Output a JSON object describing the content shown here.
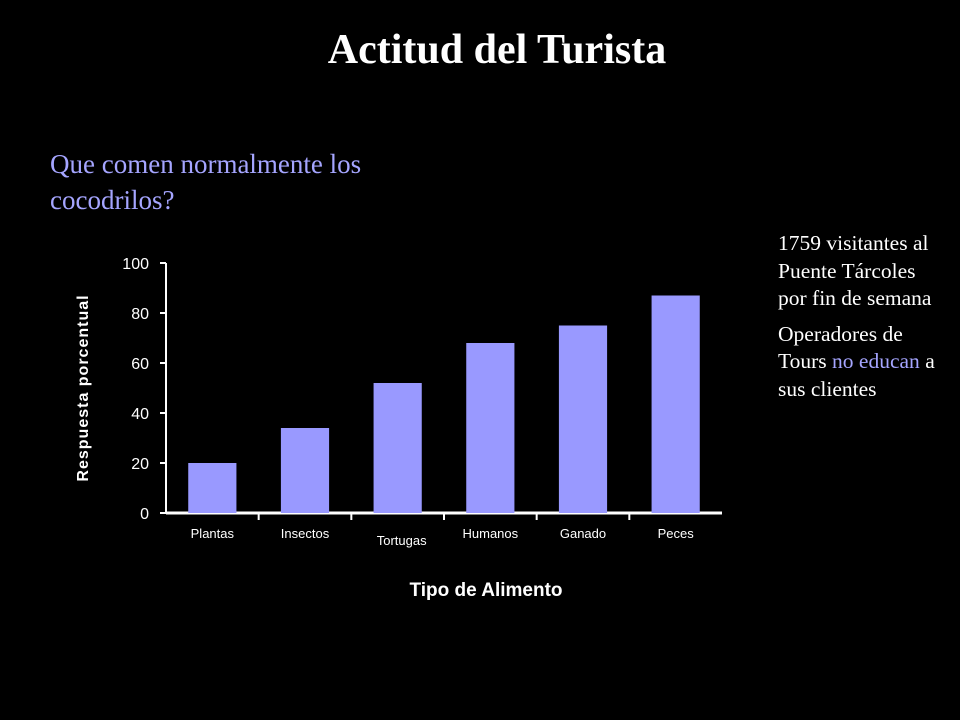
{
  "slide": {
    "title": "Actitud del Turista",
    "question": "Que comen normalmente los cocodrilos?",
    "side_info": {
      "visitors": "1759 visitantes al Puente Tárcoles por fin de semana",
      "operators_prefix": "Operadores de Tours ",
      "operators_highlight": "no educan",
      "operators_suffix": " a sus clientes"
    }
  },
  "colors": {
    "background": "#000000",
    "bar": "#9999ff",
    "accent_text": "#a5a5ff",
    "text": "#ffffff"
  },
  "chart_data": {
    "type": "bar",
    "categories": [
      "Plantas",
      "Insectos",
      "Tortugas",
      "Humanos",
      "Ganado",
      "Peces"
    ],
    "values": [
      20,
      34,
      52,
      68,
      75,
      87
    ],
    "title": "",
    "xlabel": "Tipo de Alimento",
    "ylabel": "Respuesta porcentual",
    "ylim": [
      0,
      100
    ],
    "yticks": [
      0,
      20,
      40,
      60,
      80,
      100
    ],
    "grid": false,
    "legend": "none"
  }
}
